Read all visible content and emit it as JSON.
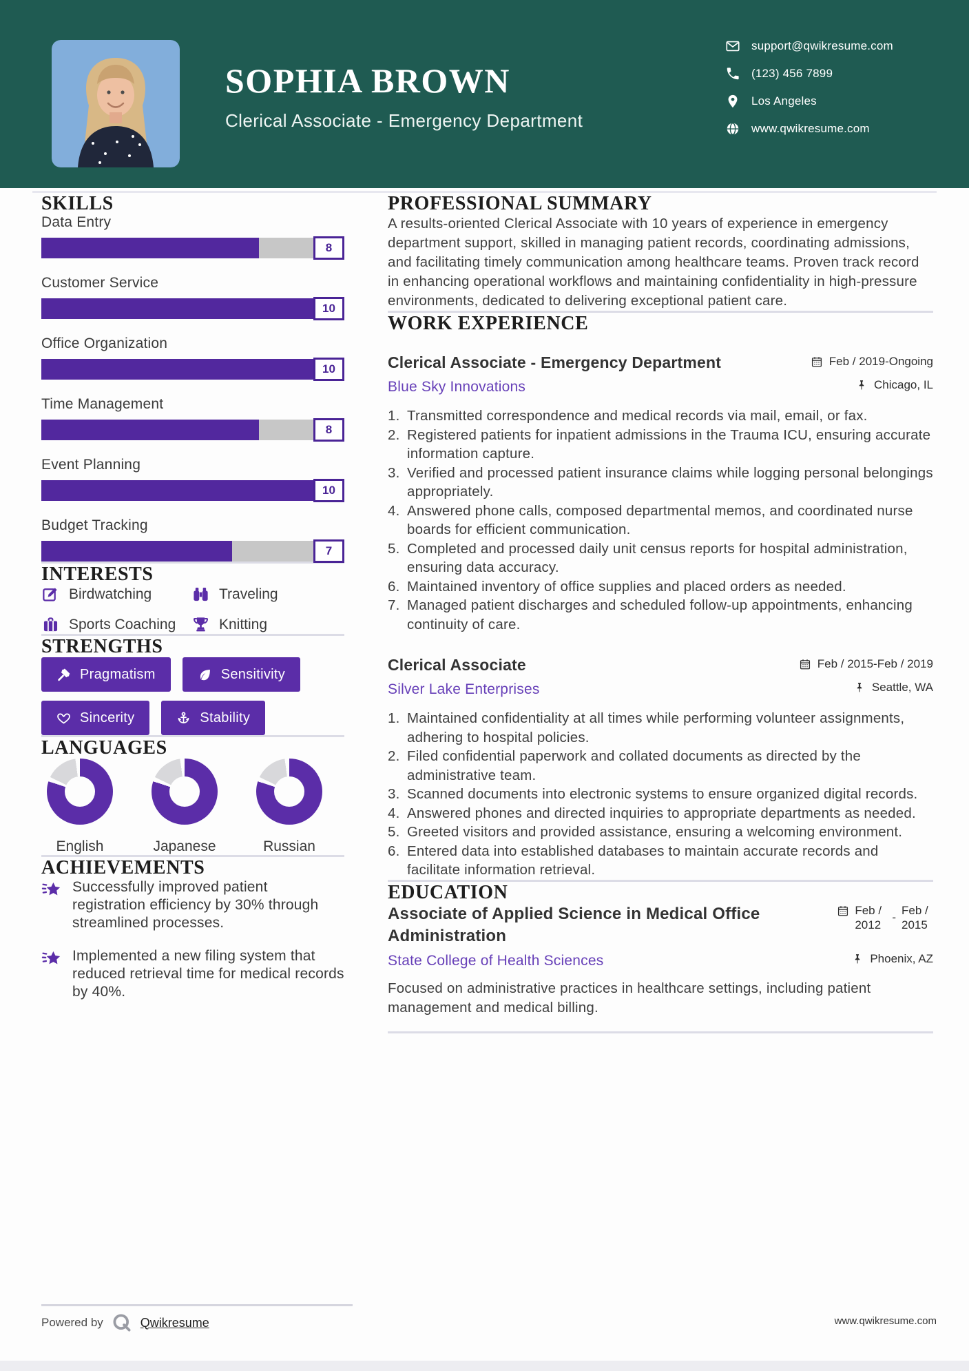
{
  "colors": {
    "header_teal": "#1F5B52",
    "purple": "#5B2DA8",
    "bar_purple": "#52289E",
    "bar_track": "#C7C7C7",
    "link_purple": "#6740B8",
    "donut_gray": "#D8D8DB"
  },
  "header": {
    "name": "SOPHIA BROWN",
    "title": "Clerical Associate - Emergency Department",
    "contact": [
      {
        "icon": "email-icon",
        "text": "support@qwikresume.com"
      },
      {
        "icon": "phone-icon",
        "text": "(123) 456 7899"
      },
      {
        "icon": "location-icon",
        "text": "Los Angeles"
      },
      {
        "icon": "globe-icon",
        "text": "www.qwikresume.com"
      }
    ]
  },
  "skills": {
    "heading": "SKILLS",
    "max": 10,
    "items": [
      {
        "label": "Data Entry",
        "value": 8
      },
      {
        "label": "Customer Service",
        "value": 10
      },
      {
        "label": "Office Organization",
        "value": 10
      },
      {
        "label": "Time Management",
        "value": 8
      },
      {
        "label": "Event Planning",
        "value": 10
      },
      {
        "label": "Budget Tracking",
        "value": 7
      }
    ]
  },
  "interests": {
    "heading": "INTERESTS",
    "items": [
      {
        "icon": "edit-icon",
        "label": "Birdwatching"
      },
      {
        "icon": "binoculars-icon",
        "label": "Traveling"
      },
      {
        "icon": "briefcase-icon",
        "label": "Sports Coaching"
      },
      {
        "icon": "trophy-icon",
        "label": "Knitting"
      }
    ]
  },
  "strengths": {
    "heading": "STRENGTHS",
    "items": [
      {
        "icon": "gavel-icon",
        "label": "Pragmatism"
      },
      {
        "icon": "leaf-icon",
        "label": "Sensitivity"
      },
      {
        "icon": "heart-icon",
        "label": "Sincerity"
      },
      {
        "icon": "anchor-icon",
        "label": "Stability"
      }
    ]
  },
  "languages": {
    "heading": "LANGUAGES",
    "items": [
      {
        "label": "English",
        "percent": 80
      },
      {
        "label": "Japanese",
        "percent": 80
      },
      {
        "label": "Russian",
        "percent": 80
      }
    ]
  },
  "achievements": {
    "heading": "ACHIEVEMENTS",
    "items": [
      {
        "icon": "shooting-star-icon",
        "text": "Successfully improved patient registration efficiency by 30% through streamlined processes."
      },
      {
        "icon": "shooting-star-icon",
        "text": "Implemented a new filing system that reduced retrieval time for medical records by 40%."
      }
    ]
  },
  "summary": {
    "heading": "PROFESSIONAL SUMMARY",
    "text": "A results-oriented Clerical Associate with 10 years of experience in emergency department support, skilled in managing patient records, coordinating admissions, and facilitating timely communication among healthcare teams. Proven track record in enhancing operational workflows and maintaining confidentiality in high-pressure environments, dedicated to delivering exceptional patient care."
  },
  "experience": {
    "heading": "WORK EXPERIENCE",
    "jobs": [
      {
        "title": "Clerical Associate - Emergency Department",
        "company": "Blue Sky Innovations",
        "date": "Feb / 2019-Ongoing",
        "location": "Chicago, IL",
        "bullets": [
          "Transmitted correspondence and medical records via mail, email, or fax.",
          "Registered patients for inpatient admissions in the Trauma ICU, ensuring accurate information capture.",
          "Verified and processed patient insurance claims while logging personal belongings appropriately.",
          "Answered phone calls, composed departmental memos, and coordinated nurse boards for efficient communication.",
          "Completed and processed daily unit census reports for hospital administration, ensuring data accuracy.",
          "Maintained inventory of office supplies and placed orders as needed.",
          "Managed patient discharges and scheduled follow-up appointments, enhancing continuity of care."
        ]
      },
      {
        "title": "Clerical Associate",
        "company": "Silver Lake Enterprises",
        "date": "Feb / 2015-Feb / 2019",
        "location": "Seattle, WA",
        "bullets": [
          "Maintained confidentiality at all times while performing volunteer assignments, adhering to hospital policies.",
          "Filed confidential paperwork and collated documents as directed by the administrative team.",
          "Scanned documents into electronic systems to ensure organized digital records.",
          "Answered phones and directed inquiries to appropriate departments as needed.",
          "Greeted visitors and provided assistance, ensuring a welcoming environment.",
          "Entered data into established databases to maintain accurate records and facilitate information retrieval."
        ]
      }
    ]
  },
  "education": {
    "heading": "EDUCATION",
    "degree": "Associate of Applied Science in Medical Office Administration",
    "school": "State College of Health Sciences",
    "date_start": "Feb / 2012",
    "date_separator": "-",
    "date_end": "Feb / 2015",
    "location": "Phoenix, AZ",
    "description": "Focused on administrative practices in healthcare settings, including patient management and medical billing."
  },
  "footer": {
    "powered_by": "Powered by",
    "brand": "Qwikresume",
    "website": "www.qwikresume.com"
  }
}
